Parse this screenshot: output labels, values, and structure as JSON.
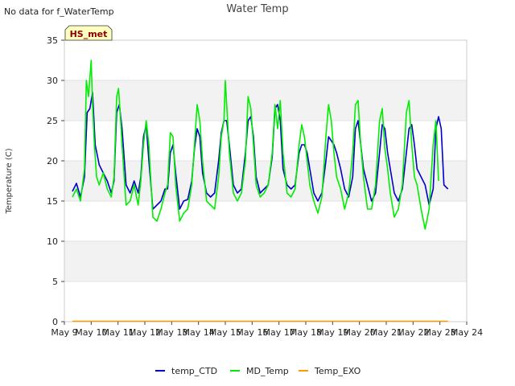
{
  "no_data_note": "No data for f_WaterTemp",
  "badge": "HS_met",
  "colors": {
    "temp_CTD": "#0000cc",
    "MD_Temp": "#00ee00",
    "Temp_EXO": "#ff9900",
    "band": "#f2f2f2",
    "badge_fill": "#ffffc0"
  },
  "chart_data": {
    "type": "line",
    "title": "Water Temp",
    "xlabel": "",
    "ylabel": "Temperature (C)",
    "xlim": [
      9,
      24
    ],
    "ylim": [
      0,
      35
    ],
    "xticks": [
      9,
      10,
      11,
      12,
      13,
      14,
      15,
      16,
      17,
      18,
      19,
      20,
      21,
      22,
      23,
      24
    ],
    "xtick_labels": [
      "May 9",
      "May 10",
      "May 11",
      "May 12",
      "May 13",
      "May 14",
      "May 15",
      "May 16",
      "May 17",
      "May 18",
      "May 19",
      "May 20",
      "May 21",
      "May 22",
      "May 23",
      "May 24"
    ],
    "yticks": [
      0,
      5,
      10,
      15,
      20,
      25,
      30,
      35
    ],
    "grid": true,
    "legend": "bottom",
    "series": [
      {
        "name": "temp_CTD",
        "x": [
          9.3,
          9.45,
          9.6,
          9.75,
          9.85,
          9.95,
          10.05,
          10.15,
          10.3,
          10.45,
          10.6,
          10.75,
          10.85,
          10.95,
          11.05,
          11.15,
          11.3,
          11.45,
          11.6,
          11.75,
          11.85,
          11.95,
          12.05,
          12.15,
          12.3,
          12.45,
          12.6,
          12.75,
          12.85,
          12.95,
          13.05,
          13.15,
          13.3,
          13.45,
          13.6,
          13.75,
          13.85,
          13.95,
          14.05,
          14.15,
          14.3,
          14.45,
          14.6,
          14.75,
          14.85,
          14.95,
          15.05,
          15.15,
          15.3,
          15.45,
          15.6,
          15.75,
          15.85,
          15.95,
          16.05,
          16.15,
          16.3,
          16.45,
          16.6,
          16.75,
          16.85,
          16.95,
          17.05,
          17.15,
          17.3,
          17.45,
          17.6,
          17.75,
          17.85,
          17.95,
          18.05,
          18.15,
          18.3,
          18.45,
          18.6,
          18.75,
          18.85,
          18.95,
          19.05,
          19.15,
          19.3,
          19.45,
          19.6,
          19.75,
          19.85,
          19.95,
          20.05,
          20.15,
          20.3,
          20.45,
          20.6,
          20.75,
          20.85,
          20.95,
          21.05,
          21.15,
          21.3,
          21.45,
          21.6,
          21.75,
          21.85,
          21.95,
          22.05,
          22.15,
          22.3,
          22.45,
          22.6,
          22.75,
          22.85,
          22.95,
          23.05,
          23.15,
          23.3
        ],
        "values": [
          16.2,
          17.2,
          15.5,
          18.0,
          26.0,
          26.5,
          28.5,
          22.0,
          19.5,
          18.5,
          17.5,
          16.0,
          17.5,
          26.0,
          27.0,
          24.0,
          17.0,
          16.0,
          17.5,
          16.0,
          18.0,
          23.0,
          24.5,
          20.0,
          14.0,
          14.5,
          15.0,
          16.5,
          16.5,
          21.0,
          22.0,
          18.5,
          14.0,
          15.0,
          15.2,
          17.5,
          21.5,
          24.0,
          23.0,
          18.5,
          16.0,
          15.5,
          16.0,
          20.0,
          23.5,
          25.0,
          25.0,
          22.0,
          17.0,
          16.0,
          16.5,
          21.0,
          25.0,
          25.5,
          23.0,
          18.0,
          16.0,
          16.5,
          17.0,
          20.5,
          26.5,
          27.0,
          25.0,
          19.0,
          17.0,
          16.5,
          17.0,
          21.0,
          22.0,
          22.0,
          21.0,
          19.0,
          16.0,
          15.0,
          16.0,
          20.0,
          23.0,
          22.5,
          22.0,
          21.0,
          19.0,
          16.5,
          15.5,
          18.0,
          24.0,
          25.0,
          22.0,
          19.0,
          17.0,
          15.0,
          16.0,
          21.0,
          24.5,
          24.0,
          21.0,
          19.0,
          16.0,
          15.0,
          16.5,
          21.0,
          24.0,
          24.5,
          22.0,
          19.0,
          18.0,
          17.0,
          14.5,
          16.5,
          24.0,
          25.5,
          24.0,
          17.0,
          16.5
        ]
      },
      {
        "name": "MD_Temp",
        "x": [
          9.3,
          9.45,
          9.6,
          9.75,
          9.82,
          9.9,
          10.0,
          10.05,
          10.12,
          10.2,
          10.3,
          10.45,
          10.6,
          10.75,
          10.85,
          10.95,
          11.02,
          11.08,
          11.15,
          11.3,
          11.45,
          11.6,
          11.75,
          11.85,
          11.95,
          12.05,
          12.15,
          12.3,
          12.45,
          12.6,
          12.75,
          12.85,
          12.95,
          13.05,
          13.15,
          13.3,
          13.45,
          13.6,
          13.75,
          13.85,
          13.95,
          14.0,
          14.05,
          14.15,
          14.3,
          14.45,
          14.6,
          14.75,
          14.85,
          14.95,
          15.0,
          15.05,
          15.15,
          15.3,
          15.45,
          15.6,
          15.75,
          15.85,
          15.95,
          16.05,
          16.15,
          16.3,
          16.45,
          16.6,
          16.75,
          16.85,
          16.95,
          17.05,
          17.15,
          17.3,
          17.45,
          17.6,
          17.75,
          17.85,
          17.95,
          18.05,
          18.15,
          18.3,
          18.45,
          18.6,
          18.75,
          18.85,
          18.95,
          19.05,
          19.15,
          19.3,
          19.45,
          19.6,
          19.75,
          19.85,
          19.95,
          20.05,
          20.15,
          20.3,
          20.45,
          20.6,
          20.75,
          20.85,
          20.95,
          21.05,
          21.15,
          21.3,
          21.45,
          21.6,
          21.75,
          21.85,
          21.95,
          22.05,
          22.15,
          22.3,
          22.45,
          22.6,
          22.75,
          22.85,
          22.95
        ],
        "values": [
          15.5,
          16.5,
          15.0,
          19.0,
          30.0,
          28.0,
          32.5,
          27.0,
          22.0,
          18.0,
          17.0,
          18.5,
          16.5,
          15.5,
          18.0,
          28.0,
          29.0,
          26.0,
          22.0,
          14.5,
          15.0,
          17.0,
          14.5,
          17.5,
          22.0,
          25.0,
          22.0,
          13.0,
          12.5,
          14.0,
          16.0,
          17.0,
          23.5,
          23.0,
          17.0,
          12.5,
          13.5,
          14.0,
          17.0,
          22.0,
          27.0,
          26.0,
          25.0,
          20.0,
          15.0,
          14.5,
          14.0,
          18.0,
          23.0,
          25.0,
          30.0,
          27.0,
          21.0,
          16.0,
          15.0,
          16.0,
          20.0,
          28.0,
          26.5,
          22.0,
          17.0,
          15.5,
          16.0,
          17.0,
          21.0,
          27.0,
          24.0,
          27.5,
          21.0,
          16.0,
          15.5,
          16.5,
          22.0,
          24.5,
          23.0,
          20.0,
          17.0,
          15.0,
          13.5,
          15.5,
          23.0,
          27.0,
          25.0,
          21.0,
          18.0,
          16.5,
          14.0,
          16.0,
          21.0,
          27.0,
          27.5,
          22.0,
          18.0,
          14.0,
          14.0,
          17.0,
          25.0,
          26.5,
          21.5,
          19.0,
          16.0,
          13.0,
          14.0,
          17.0,
          26.0,
          27.5,
          22.0,
          18.0,
          17.0,
          14.0,
          11.5,
          14.0,
          22.0,
          25.0,
          17.5
        ]
      },
      {
        "name": "Temp_EXO",
        "x": [
          9.3,
          23.3
        ],
        "values": [
          0.05,
          0.05
        ]
      }
    ]
  }
}
